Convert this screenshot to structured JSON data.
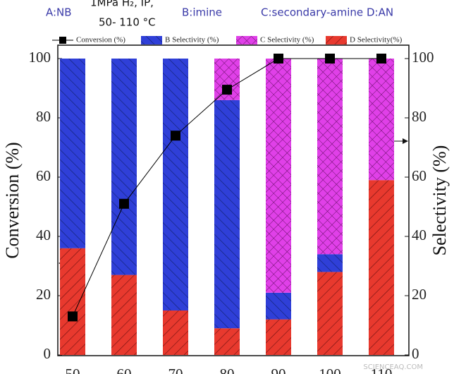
{
  "chart_data": {
    "type": "bar",
    "annotations": [
      "A:NB",
      "1MPa H₂, IP,",
      "50- 110 °C",
      "B:imine",
      "C:secondary-amine",
      "D:AN"
    ],
    "watermark": "SCIENCEAQ.COM",
    "y_label": "Conversion (%)",
    "y2_label": "Selectivity (%)",
    "categories": [
      "50",
      "60",
      "70",
      "80",
      "90",
      "100",
      "110"
    ],
    "series": [
      {
        "name": "Conversion (%)",
        "type": "line",
        "color": "#000000",
        "axis": "y",
        "values": [
          13,
          51,
          74,
          89.5,
          100,
          100,
          100
        ]
      },
      {
        "name": "B Selectivity  (%)",
        "color": "#2f3fd8",
        "axis": "y2",
        "values": [
          64,
          73,
          85,
          77,
          9,
          6,
          0
        ]
      },
      {
        "name": "C Selectivity (%)",
        "color": "#e040e8",
        "axis": "y2",
        "values": [
          0,
          0,
          0,
          14,
          79,
          66,
          41
        ]
      },
      {
        "name": "D Selectivity(%)",
        "color": "#e8392e",
        "axis": "y2",
        "values": [
          36,
          27,
          15,
          9,
          12,
          28,
          59
        ]
      }
    ],
    "ylim": [
      0,
      100
    ],
    "yticks": [
      0,
      20,
      40,
      60,
      80,
      100
    ],
    "y2lim": [
      0,
      100
    ],
    "y2ticks": [
      0,
      20,
      40,
      60,
      80,
      100
    ]
  }
}
